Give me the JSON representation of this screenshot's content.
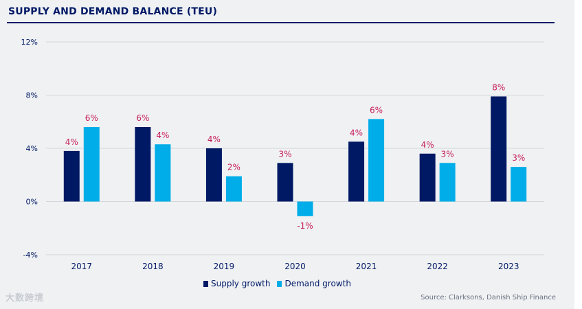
{
  "title": "SUPPLY AND DEMAND BALANCE (TEU)",
  "source": "Source: Clarksons, Danish Ship Finance",
  "watermark": "大数跨境",
  "colors": {
    "supply": "#001965",
    "demand": "#00ade8",
    "label": "#c8205d",
    "axis": "#001965",
    "grid": "#d3d6da"
  },
  "chart_data": {
    "type": "bar",
    "title": "SUPPLY AND DEMAND BALANCE (TEU)",
    "categories": [
      "2017",
      "2018",
      "2019",
      "2020",
      "2021",
      "2022",
      "2023"
    ],
    "series": [
      {
        "name": "Supply growth",
        "values": [
          3.8,
          5.6,
          4.0,
          2.9,
          4.5,
          3.6,
          7.9
        ],
        "labels": [
          "4%",
          "6%",
          "4%",
          "3%",
          "4%",
          "4%",
          "8%"
        ]
      },
      {
        "name": "Demand growth",
        "values": [
          5.6,
          4.3,
          1.9,
          -1.1,
          6.2,
          2.9,
          2.6
        ],
        "labels": [
          "6%",
          "4%",
          "2%",
          "-1%",
          "6%",
          "3%",
          "3%"
        ]
      }
    ],
    "ylim": [
      -4,
      12
    ],
    "yticks": [
      -4,
      0,
      4,
      8,
      12
    ],
    "ytick_labels": [
      "-4%",
      "0%",
      "4%",
      "8%",
      "12%"
    ],
    "grid": true,
    "legend": "bottom"
  }
}
